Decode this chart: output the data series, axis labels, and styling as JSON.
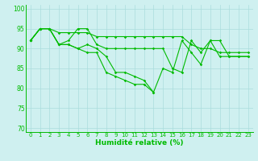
{
  "xlabel": "Humidité relative (%)",
  "bg_color": "#cff0f0",
  "grid_color": "#aadddd",
  "line_color": "#00bb00",
  "marker": "D",
  "marker_size": 1.8,
  "line_width": 0.8,
  "xlim": [
    -0.5,
    23.5
  ],
  "ylim": [
    69,
    101
  ],
  "yticks": [
    70,
    75,
    80,
    85,
    90,
    95,
    100
  ],
  "xticks": [
    0,
    1,
    2,
    3,
    4,
    5,
    6,
    7,
    8,
    9,
    10,
    11,
    12,
    13,
    14,
    15,
    16,
    17,
    18,
    19,
    20,
    21,
    22,
    23
  ],
  "series": [
    [
      92,
      95,
      95,
      94,
      94,
      94,
      94,
      93,
      93,
      93,
      93,
      93,
      93,
      93,
      93,
      93,
      93,
      91,
      90,
      90,
      89,
      89,
      89,
      89
    ],
    [
      92,
      95,
      95,
      91,
      92,
      95,
      95,
      91,
      90,
      90,
      90,
      90,
      90,
      90,
      90,
      85,
      84,
      92,
      89,
      92,
      92,
      88,
      88,
      88
    ],
    [
      92,
      95,
      95,
      91,
      91,
      90,
      91,
      90,
      88,
      84,
      84,
      83,
      82,
      79,
      85,
      84,
      92,
      89,
      86,
      92,
      88,
      88,
      88,
      88
    ],
    [
      92,
      95,
      95,
      91,
      91,
      90,
      89,
      89,
      84,
      83,
      82,
      81,
      81,
      79,
      null,
      null,
      null,
      null,
      null,
      null,
      null,
      null,
      null,
      null
    ]
  ]
}
